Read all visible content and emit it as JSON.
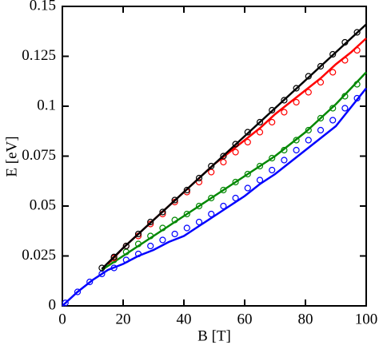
{
  "chart_data": {
    "type": "line",
    "x_label": "B [T]",
    "y_label": "E [eV]",
    "xlim": [
      0,
      100
    ],
    "xticks": [
      0,
      20,
      40,
      60,
      80,
      100
    ],
    "ylim": [
      0,
      0.15
    ],
    "yticks": [
      0,
      0.025,
      0.05,
      0.075,
      0.1,
      0.125,
      0.15
    ],
    "series": [
      {
        "color": "#0000ff",
        "x": [
          0,
          5,
          10,
          15,
          20,
          25,
          30,
          35,
          40,
          45,
          50,
          55,
          60,
          65,
          70,
          75,
          80,
          85,
          90,
          95,
          100
        ],
        "values": [
          0,
          0.007,
          0.013,
          0.018,
          0.021,
          0.025,
          0.028,
          0.032,
          0.035,
          0.04,
          0.045,
          0.05,
          0.055,
          0.061,
          0.066,
          0.072,
          0.078,
          0.084,
          0.09,
          0.0995,
          0.109
        ],
        "marker_x": [
          1,
          5,
          9,
          13,
          17,
          21,
          25,
          29,
          33,
          37,
          41,
          45,
          49,
          53,
          57,
          61,
          65,
          69,
          73,
          77,
          81,
          85,
          89,
          93,
          97
        ],
        "marker_values": [
          0.0015,
          0.007,
          0.012,
          0.016,
          0.019,
          0.023,
          0.026,
          0.03,
          0.033,
          0.036,
          0.039,
          0.042,
          0.046,
          0.05,
          0.054,
          0.059,
          0.063,
          0.068,
          0.073,
          0.078,
          0.083,
          0.088,
          0.093,
          0.099,
          0.104
        ]
      },
      {
        "color": "#008800",
        "x": [
          13,
          15,
          20,
          25,
          30,
          35,
          40,
          45,
          50,
          55,
          60,
          65,
          70,
          75,
          80,
          85,
          90,
          95,
          100
        ],
        "values": [
          0.018,
          0.02,
          0.025,
          0.03,
          0.035,
          0.04,
          0.045,
          0.05,
          0.055,
          0.06,
          0.065,
          0.07,
          0.075,
          0.081,
          0.087,
          0.094,
          0.101,
          0.109,
          0.117
        ],
        "marker_x": [
          17,
          21,
          25,
          29,
          33,
          37,
          41,
          45,
          49,
          53,
          57,
          61,
          65,
          69,
          73,
          77,
          81,
          85,
          89,
          93,
          97
        ],
        "marker_values": [
          0.023,
          0.027,
          0.031,
          0.035,
          0.039,
          0.043,
          0.046,
          0.05,
          0.054,
          0.058,
          0.062,
          0.066,
          0.07,
          0.074,
          0.078,
          0.083,
          0.088,
          0.094,
          0.099,
          0.105,
          0.111
        ]
      },
      {
        "color": "#ff0000",
        "x": [
          15,
          20,
          25,
          30,
          35,
          40,
          45,
          50,
          55,
          60,
          65,
          70,
          75,
          80,
          85,
          90,
          95,
          100
        ],
        "values": [
          0.021,
          0.029,
          0.036,
          0.043,
          0.05,
          0.057,
          0.064,
          0.071,
          0.077,
          0.083,
          0.089,
          0.096,
          0.102,
          0.108,
          0.114,
          0.121,
          0.127,
          0.134
        ],
        "marker_x": [
          17,
          21,
          25,
          29,
          33,
          37,
          41,
          45,
          49,
          53,
          57,
          61,
          65,
          69,
          73,
          77,
          81,
          85,
          89,
          93,
          97
        ],
        "marker_values": [
          0.024,
          0.03,
          0.035,
          0.041,
          0.046,
          0.052,
          0.057,
          0.062,
          0.067,
          0.072,
          0.077,
          0.082,
          0.087,
          0.092,
          0.097,
          0.102,
          0.107,
          0.112,
          0.117,
          0.123,
          0.128
        ]
      },
      {
        "color": "#000000",
        "x": [
          13,
          20,
          25,
          30,
          35,
          40,
          45,
          50,
          55,
          60,
          65,
          70,
          75,
          80,
          85,
          90,
          95,
          100
        ],
        "values": [
          0.0185,
          0.029,
          0.036,
          0.043,
          0.05,
          0.057,
          0.064,
          0.071,
          0.078,
          0.085,
          0.092,
          0.099,
          0.106,
          0.113,
          0.12,
          0.127,
          0.134,
          0.141
        ],
        "marker_x": [
          13,
          17,
          21,
          25,
          29,
          33,
          37,
          41,
          45,
          49,
          53,
          57,
          61,
          65,
          69,
          73,
          77,
          81,
          85,
          89,
          93,
          97
        ],
        "marker_values": [
          0.019,
          0.0245,
          0.03,
          0.036,
          0.042,
          0.047,
          0.053,
          0.058,
          0.064,
          0.07,
          0.075,
          0.081,
          0.087,
          0.092,
          0.098,
          0.103,
          0.109,
          0.115,
          0.12,
          0.126,
          0.132,
          0.137
        ]
      }
    ]
  }
}
